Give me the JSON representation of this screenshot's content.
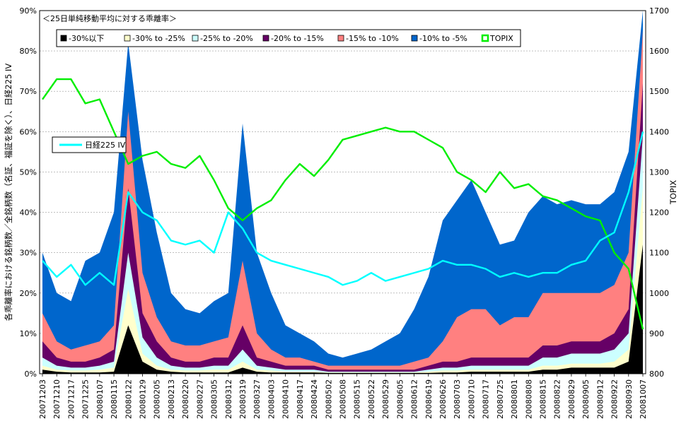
{
  "chart_data": {
    "type": "area",
    "title": "＜25日単純移動平均に対する乖離率＞",
    "ylabel": "各乖離率における銘柄数／全銘柄数（名証、福証を除く）、日経225 IV",
    "y2label": "TOPIX",
    "ylim": [
      0,
      90
    ],
    "y2lim": [
      800,
      1700
    ],
    "ytick_labels": [
      "0%",
      "10%",
      "20%",
      "30%",
      "40%",
      "50%",
      "60%",
      "70%",
      "80%",
      "90%"
    ],
    "y2tick_labels": [
      "800",
      "900",
      "1000",
      "1100",
      "1200",
      "1300",
      "1400",
      "1500",
      "1600",
      "1700"
    ],
    "x_tick_labels": [
      "20071203",
      "20071210",
      "20071217",
      "20071225",
      "20080107",
      "20080115",
      "20080122",
      "20080129",
      "20080205",
      "20080213",
      "20080220",
      "20080227",
      "20080305",
      "20080312",
      "20080319",
      "20080327",
      "20080403",
      "20080410",
      "20080417",
      "20080424",
      "20080502",
      "20080508",
      "20080515",
      "20080522",
      "20080529",
      "20080605",
      "20080612",
      "20080619",
      "20080626",
      "20080703",
      "20080710",
      "20080717",
      "20080725",
      "20080801",
      "20080808",
      "20080815",
      "20080822",
      "20080829",
      "20080905",
      "20080912",
      "20080922",
      "20080930",
      "20081007"
    ],
    "series": [
      {
        "name": "-30%以下",
        "color": "#000000",
        "axis": "left",
        "cumulative_values": [
          1,
          0.5,
          0.3,
          0.3,
          0.3,
          0.5,
          12,
          3,
          1,
          0.5,
          0.3,
          0.3,
          0.3,
          0.3,
          1.5,
          0.5,
          0.3,
          0.3,
          0.3,
          0.3,
          0.2,
          0.2,
          0.2,
          0.2,
          0.2,
          0.2,
          0.2,
          0.2,
          0.3,
          0.3,
          0.5,
          0.5,
          0.5,
          0.5,
          0.5,
          1,
          1,
          1.5,
          1.5,
          1.5,
          1.5,
          3,
          32
        ]
      },
      {
        "name": "-30% to -25%",
        "color": "#ffffcc",
        "axis": "left",
        "cumulative_values": [
          2,
          1,
          0.8,
          0.8,
          1,
          1.5,
          21,
          5,
          2,
          1,
          0.8,
          0.8,
          1,
          1,
          3,
          1,
          0.8,
          0.5,
          0.5,
          0.5,
          0.3,
          0.3,
          0.3,
          0.3,
          0.3,
          0.3,
          0.3,
          0.5,
          0.8,
          0.8,
          1,
          1,
          1,
          1,
          1,
          2,
          2,
          2.5,
          2.5,
          2.5,
          3,
          6,
          46
        ]
      },
      {
        "name": "-25% to -20%",
        "color": "#ccffff",
        "axis": "left",
        "cumulative_values": [
          4,
          2,
          1.5,
          1.5,
          2,
          3,
          30,
          9,
          4,
          2,
          1.5,
          1.5,
          2,
          2,
          6,
          2,
          1.5,
          1,
          1,
          1,
          0.5,
          0.5,
          0.5,
          0.5,
          0.5,
          0.5,
          0.5,
          1,
          1.5,
          1.5,
          2,
          2,
          2,
          2,
          2,
          4,
          4,
          5,
          5,
          5,
          6,
          10,
          59
        ]
      },
      {
        "name": "-20% to -15%",
        "color": "#660066",
        "axis": "left",
        "cumulative_values": [
          8,
          4,
          3,
          3,
          4,
          6,
          46,
          15,
          8,
          4,
          3,
          3,
          4,
          4,
          12,
          4,
          3,
          2,
          2,
          2,
          1,
          1,
          1,
          1,
          1,
          1,
          1,
          2,
          3,
          3,
          4,
          4,
          4,
          4,
          4,
          7,
          7,
          8,
          8,
          8,
          10,
          16,
          72
        ]
      },
      {
        "name": "-15% to -10%",
        "color": "#ff8080",
        "axis": "left",
        "cumulative_values": [
          15,
          8,
          6,
          7,
          8,
          12,
          65,
          25,
          14,
          8,
          7,
          7,
          8,
          9,
          28,
          10,
          6,
          4,
          4,
          3,
          2,
          2,
          2,
          2,
          2,
          2,
          3,
          4,
          8,
          14,
          16,
          16,
          12,
          14,
          14,
          20,
          20,
          20,
          20,
          20,
          22,
          30,
          85
        ]
      },
      {
        "name": "-10% to -5%",
        "color": "#0066cc",
        "axis": "left",
        "cumulative_values": [
          30,
          20,
          18,
          28,
          30,
          40,
          82,
          53,
          35,
          20,
          16,
          15,
          18,
          20,
          62,
          30,
          20,
          12,
          10,
          8,
          5,
          4,
          5,
          6,
          8,
          10,
          16,
          24,
          38,
          43,
          48,
          40,
          32,
          33,
          40,
          44,
          42,
          43,
          42,
          42,
          45,
          55,
          90
        ]
      },
      {
        "name": "TOPIX",
        "color": "#00ee00",
        "axis": "right",
        "values": [
          1480,
          1530,
          1530,
          1470,
          1480,
          1400,
          1320,
          1340,
          1350,
          1320,
          1310,
          1340,
          1280,
          1210,
          1180,
          1210,
          1230,
          1280,
          1320,
          1290,
          1330,
          1380,
          1390,
          1400,
          1410,
          1400,
          1400,
          1380,
          1360,
          1300,
          1280,
          1250,
          1300,
          1260,
          1270,
          1240,
          1230,
          1210,
          1190,
          1180,
          1100,
          1060,
          910
        ]
      },
      {
        "name": "日経225 IV",
        "color": "#00ffff",
        "axis": "left",
        "values": [
          28,
          24,
          27,
          22,
          25,
          22,
          45,
          40,
          38,
          33,
          32,
          33,
          30,
          40,
          36,
          30,
          28,
          27,
          26,
          25,
          24,
          22,
          23,
          25,
          23,
          24,
          25,
          26,
          28,
          27,
          27,
          26,
          24,
          25,
          24,
          25,
          25,
          27,
          28,
          33,
          35,
          45,
          60
        ]
      }
    ],
    "legend_top": [
      "-30%以下",
      "-30% to -25%",
      "-25% to -20%",
      "-20% to -15%",
      "-15% to -10%",
      "-10% to -5%",
      "TOPIX"
    ],
    "legend_inset": "日経225 IV"
  }
}
